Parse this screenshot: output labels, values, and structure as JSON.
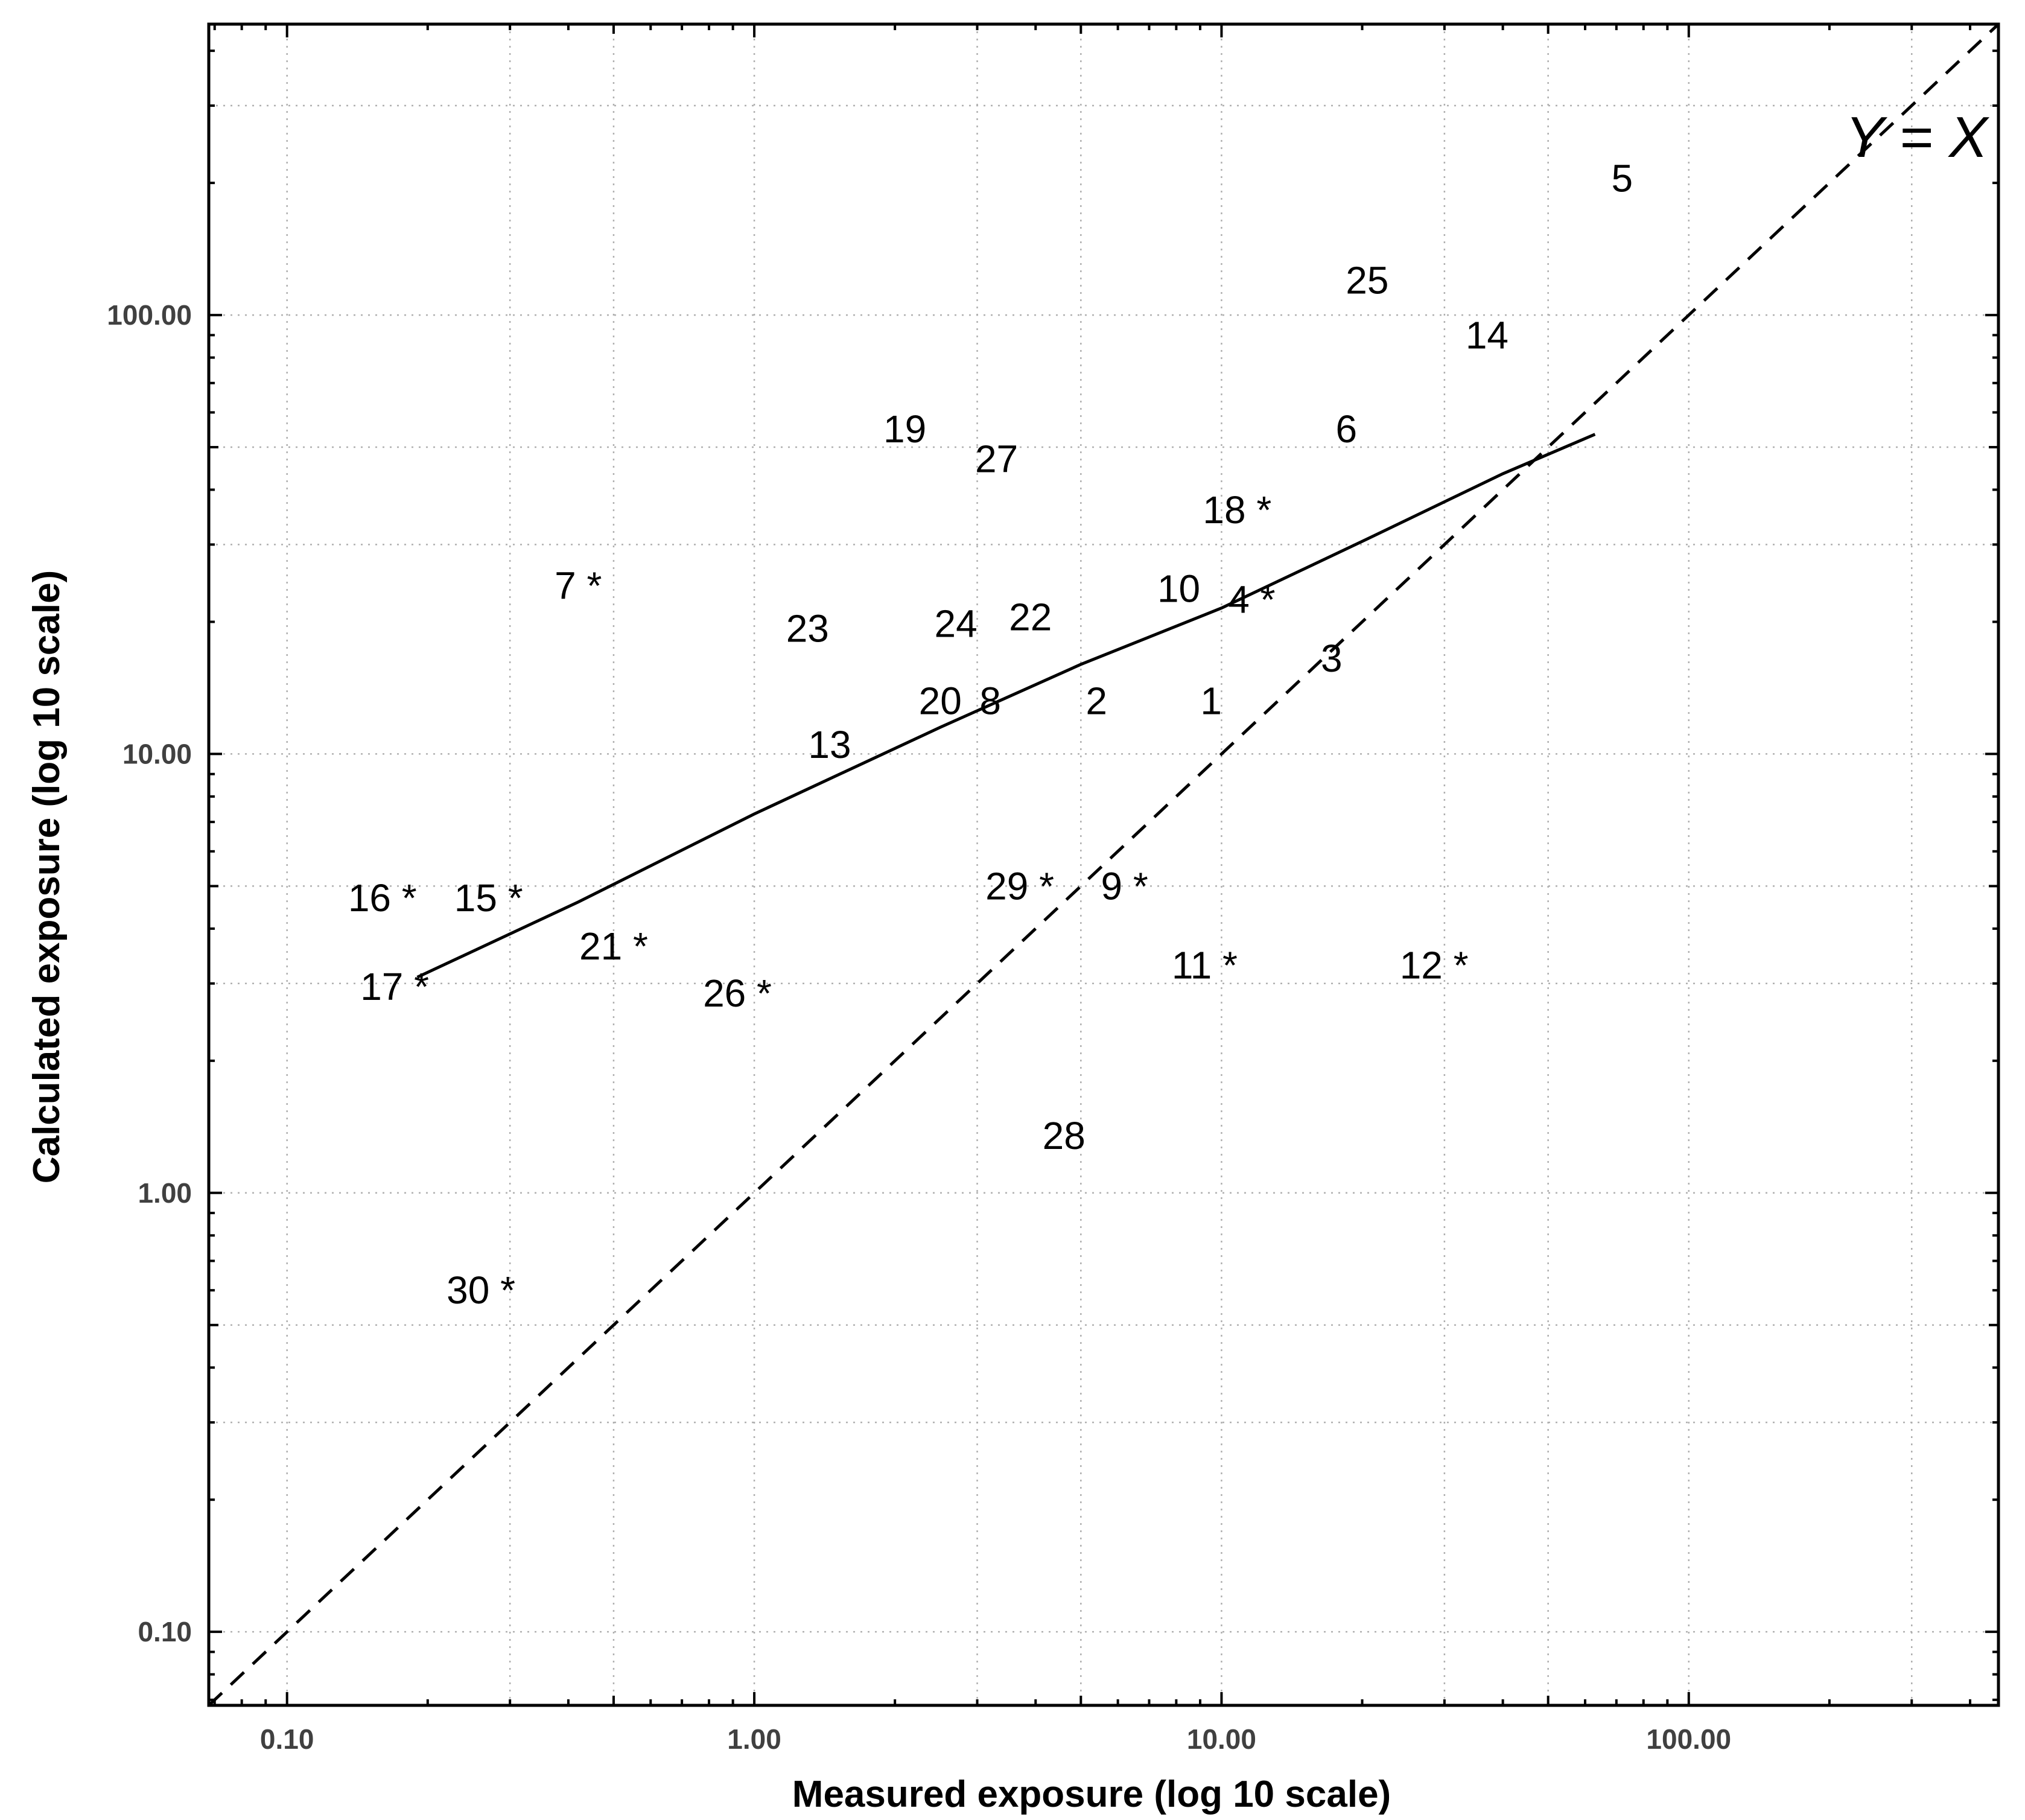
{
  "chart_data": {
    "type": "scatter",
    "xlabel": "Measured exposure (log 10 scale)",
    "ylabel": "Calculated exposure (log 10 scale)",
    "x_scale": "log10",
    "y_scale": "log10",
    "xlim": [
      0.068,
      460
    ],
    "ylim": [
      0.068,
      460
    ],
    "grid": true,
    "x_ticks": [
      0.1,
      1,
      10,
      100
    ],
    "x_tick_labels": [
      "0.10",
      "1.00",
      "10.00",
      "100.00"
    ],
    "y_ticks": [
      0.1,
      1,
      10,
      100
    ],
    "y_tick_labels": [
      "0.10",
      "1.00",
      "10.00",
      "100.00"
    ],
    "annotation": "Y = X",
    "points": [
      {
        "label": "1",
        "x": 9.5,
        "y": 13.2
      },
      {
        "label": "2",
        "x": 5.4,
        "y": 13.2
      },
      {
        "label": "3",
        "x": 17.2,
        "y": 16.5
      },
      {
        "label": "4 *",
        "x": 11.6,
        "y": 22.5
      },
      {
        "label": "5",
        "x": 72,
        "y": 205
      },
      {
        "label": "6",
        "x": 18.5,
        "y": 55
      },
      {
        "label": "7 *",
        "x": 0.42,
        "y": 24.2
      },
      {
        "label": "8",
        "x": 3.2,
        "y": 13.2
      },
      {
        "label": "9 *",
        "x": 6.2,
        "y": 5.0
      },
      {
        "label": "10",
        "x": 8.1,
        "y": 23.8
      },
      {
        "label": "11 *",
        "x": 9.2,
        "y": 3.3
      },
      {
        "label": "12 *",
        "x": 28.5,
        "y": 3.3
      },
      {
        "label": "13",
        "x": 1.45,
        "y": 10.5
      },
      {
        "label": "14",
        "x": 37,
        "y": 90
      },
      {
        "label": "15 *",
        "x": 0.27,
        "y": 4.7
      },
      {
        "label": "16 *",
        "x": 0.16,
        "y": 4.7
      },
      {
        "label": "17 *",
        "x": 0.17,
        "y": 2.95
      },
      {
        "label": "18 *",
        "x": 10.8,
        "y": 36
      },
      {
        "label": "19",
        "x": 2.1,
        "y": 55
      },
      {
        "label": "20",
        "x": 2.5,
        "y": 13.2
      },
      {
        "label": "21 *",
        "x": 0.5,
        "y": 3.65
      },
      {
        "label": "22",
        "x": 3.9,
        "y": 20.5
      },
      {
        "label": "23",
        "x": 1.3,
        "y": 19.3
      },
      {
        "label": "24",
        "x": 2.7,
        "y": 19.8
      },
      {
        "label": "25",
        "x": 20.5,
        "y": 120
      },
      {
        "label": "26 *",
        "x": 0.92,
        "y": 2.85
      },
      {
        "label": "27",
        "x": 3.3,
        "y": 47
      },
      {
        "label": "28",
        "x": 4.6,
        "y": 1.35
      },
      {
        "label": "29 *",
        "x": 3.7,
        "y": 5.0
      },
      {
        "label": "30 *",
        "x": 0.26,
        "y": 0.6
      }
    ],
    "series": [
      {
        "type": "line",
        "style": "solid",
        "x": [
          0.19,
          0.42,
          1.0,
          2.5,
          5.0,
          10,
          20,
          40,
          63
        ],
        "y": [
          3.1,
          4.6,
          7.3,
          11.5,
          16.0,
          21.5,
          30.5,
          43.5,
          53.5
        ]
      },
      {
        "type": "line",
        "style": "dashed",
        "x": [
          0.068,
          460
        ],
        "y": [
          0.068,
          460
        ]
      }
    ]
  }
}
